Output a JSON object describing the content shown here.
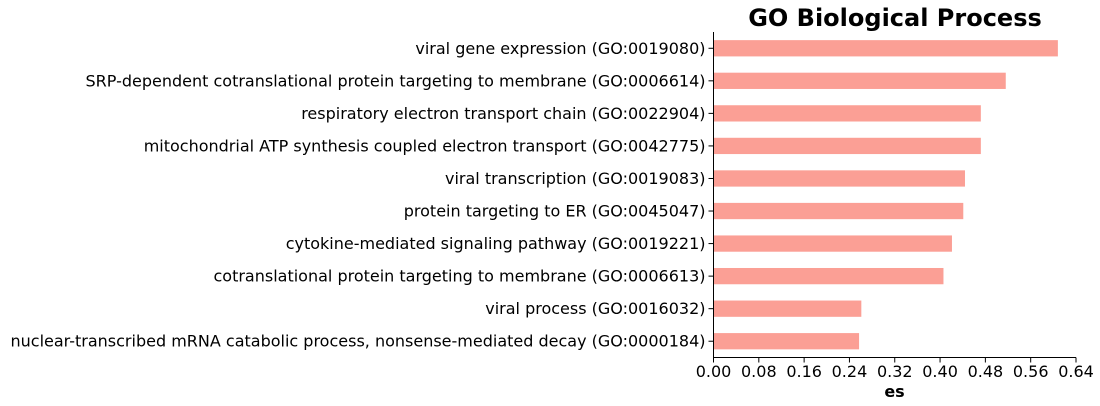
{
  "chart_data": {
    "type": "bar",
    "orientation": "horizontal",
    "title": "GO Biological Process",
    "xlabel": "es",
    "ylabel": "",
    "xlim": [
      0,
      0.64
    ],
    "xticks": [
      "0.00",
      "0.08",
      "0.16",
      "0.24",
      "0.32",
      "0.40",
      "0.48",
      "0.56",
      "0.64"
    ],
    "grid": false,
    "bar_color": "#fb9f95",
    "categories": [
      "viral gene expression (GO:0019080)",
      "SRP-dependent cotranslational protein targeting to membrane (GO:0006614)",
      "respiratory electron transport chain (GO:0022904)",
      "mitochondrial ATP synthesis coupled electron transport (GO:0042775)",
      "viral transcription (GO:0019083)",
      "protein targeting to ER (GO:0045047)",
      "cytokine-mediated signaling pathway (GO:0019221)",
      "cotranslational protein targeting to membrane (GO:0006613)",
      "viral process (GO:0016032)",
      "nuclear-transcribed mRNA catabolic process, nonsense-mediated decay (GO:0000184)"
    ],
    "values": [
      0.608,
      0.516,
      0.472,
      0.472,
      0.444,
      0.441,
      0.421,
      0.406,
      0.261,
      0.257
    ]
  }
}
